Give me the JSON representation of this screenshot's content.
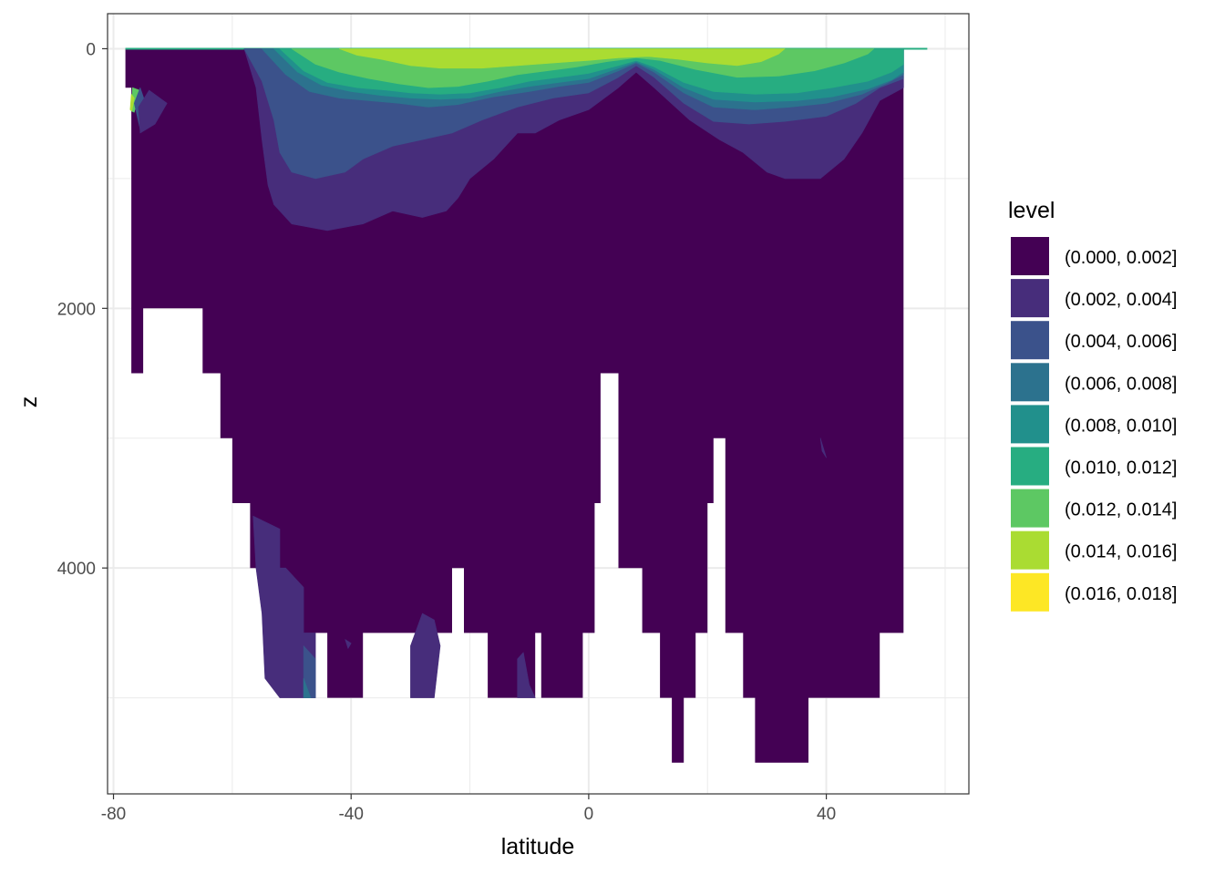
{
  "chart_data": {
    "type": "filled-contour",
    "title": "",
    "xlabel": "latitude",
    "ylabel": "z",
    "xlim": [
      -81,
      64
    ],
    "ylim": [
      5740,
      -270
    ],
    "y_reversed": true,
    "x_ticks": [
      -80,
      -40,
      0,
      40
    ],
    "x_tick_labels": [
      "-80",
      "-40",
      "0",
      "40"
    ],
    "y_ticks": [
      0,
      2000,
      4000
    ],
    "y_tick_labels": [
      "0",
      "2000",
      "4000"
    ],
    "grid": true,
    "legend": {
      "title": "level",
      "position": "right",
      "entries": [
        {
          "label": "(0.000, 0.002]",
          "color": "#440154"
        },
        {
          "label": "(0.002, 0.004]",
          "color": "#472D7B"
        },
        {
          "label": "(0.004, 0.006]",
          "color": "#3B528B"
        },
        {
          "label": "(0.006, 0.008]",
          "color": "#2C728E"
        },
        {
          "label": "(0.008, 0.010]",
          "color": "#21908C"
        },
        {
          "label": "(0.010, 0.012]",
          "color": "#27AD81"
        },
        {
          "label": "(0.012, 0.014]",
          "color": "#5DC863"
        },
        {
          "label": "(0.014, 0.016]",
          "color": "#AADC32"
        },
        {
          "label": "(0.016, 0.018]",
          "color": "#FDE725"
        }
      ]
    },
    "bathymetry_mask": [
      [
        -77,
        300
      ],
      [
        -77,
        2500
      ],
      [
        -75,
        2500
      ],
      [
        -75,
        2000
      ],
      [
        -65,
        2000
      ],
      [
        -65,
        2500
      ],
      [
        -62,
        2500
      ],
      [
        -62,
        3000
      ],
      [
        -60,
        3000
      ],
      [
        -60,
        3500
      ],
      [
        -57,
        3500
      ],
      [
        -57,
        4000
      ],
      [
        -52,
        4000
      ],
      [
        -52,
        4500
      ],
      [
        -48,
        4500
      ],
      [
        -48,
        5000
      ],
      [
        -46,
        5000
      ],
      [
        -46,
        4500
      ],
      [
        -44,
        4500
      ],
      [
        -44,
        5000
      ],
      [
        -38,
        5000
      ],
      [
        -38,
        4500
      ],
      [
        -23,
        4500
      ],
      [
        -23,
        4000
      ],
      [
        -21,
        4000
      ],
      [
        -21,
        4500
      ],
      [
        -17,
        4500
      ],
      [
        -17,
        5000
      ],
      [
        -9,
        5000
      ],
      [
        -9,
        4500
      ],
      [
        -8,
        4500
      ],
      [
        -8,
        5000
      ],
      [
        -1,
        5000
      ],
      [
        -1,
        4500
      ],
      [
        1,
        4500
      ],
      [
        1,
        3500
      ],
      [
        2,
        3500
      ],
      [
        2,
        2500
      ],
      [
        5,
        2500
      ],
      [
        5,
        4000
      ],
      [
        9,
        4000
      ],
      [
        9,
        4500
      ],
      [
        12,
        4500
      ],
      [
        12,
        5000
      ],
      [
        14,
        5000
      ],
      [
        14,
        5500
      ],
      [
        16,
        5500
      ],
      [
        16,
        5000
      ],
      [
        18,
        5000
      ],
      [
        18,
        4500
      ],
      [
        20,
        4500
      ],
      [
        20,
        3500
      ],
      [
        21,
        3500
      ],
      [
        21,
        3000
      ],
      [
        23,
        3000
      ],
      [
        23,
        4500
      ],
      [
        26,
        4500
      ],
      [
        26,
        5000
      ],
      [
        28,
        5000
      ],
      [
        28,
        5500
      ],
      [
        37,
        5500
      ],
      [
        37,
        5000
      ],
      [
        49,
        5000
      ],
      [
        49,
        4500
      ],
      [
        53,
        4500
      ],
      [
        53,
        0
      ],
      [
        -78,
        0
      ],
      [
        -78,
        300
      ]
    ],
    "contour_bands": [
      {
        "level": "(0.002, 0.004]",
        "polygon": [
          [
            -58,
            0
          ],
          [
            -56,
            300
          ],
          [
            -55,
            700
          ],
          [
            -54,
            1050
          ],
          [
            -53,
            1200
          ],
          [
            -50,
            1350
          ],
          [
            -44,
            1400
          ],
          [
            -38,
            1350
          ],
          [
            -33,
            1250
          ],
          [
            -28,
            1300
          ],
          [
            -24,
            1250
          ],
          [
            -22,
            1150
          ],
          [
            -20,
            1000
          ],
          [
            -16,
            850
          ],
          [
            -12,
            650
          ],
          [
            -9,
            650
          ],
          [
            -5,
            550
          ],
          [
            0,
            470
          ],
          [
            5,
            300
          ],
          [
            8,
            180
          ],
          [
            11,
            300
          ],
          [
            17,
            550
          ],
          [
            22,
            700
          ],
          [
            26,
            800
          ],
          [
            30,
            950
          ],
          [
            33,
            1000
          ],
          [
            39,
            1000
          ],
          [
            43,
            850
          ],
          [
            46,
            650
          ],
          [
            49,
            400
          ],
          [
            53,
            300
          ],
          [
            53,
            0
          ]
        ]
      },
      {
        "level": "(0.004, 0.006]",
        "polygon": [
          [
            -58,
            0
          ],
          [
            -55,
            250
          ],
          [
            -53,
            550
          ],
          [
            -52,
            800
          ],
          [
            -50,
            950
          ],
          [
            -46,
            1000
          ],
          [
            -41,
            950
          ],
          [
            -38,
            850
          ],
          [
            -33,
            750
          ],
          [
            -28,
            700
          ],
          [
            -23,
            650
          ],
          [
            -18,
            550
          ],
          [
            -12,
            450
          ],
          [
            -6,
            380
          ],
          [
            0,
            340
          ],
          [
            5,
            220
          ],
          [
            8,
            130
          ],
          [
            11,
            220
          ],
          [
            16,
            420
          ],
          [
            21,
            560
          ],
          [
            27,
            580
          ],
          [
            33,
            560
          ],
          [
            40,
            520
          ],
          [
            45,
            420
          ],
          [
            49,
            300
          ],
          [
            53,
            230
          ],
          [
            53,
            0
          ]
        ]
      },
      {
        "level": "(0.006, 0.008]",
        "polygon": [
          [
            -55,
            0
          ],
          [
            -51,
            200
          ],
          [
            -47,
            330
          ],
          [
            -42,
            380
          ],
          [
            -37,
            400
          ],
          [
            -32,
            420
          ],
          [
            -27,
            450
          ],
          [
            -22,
            430
          ],
          [
            -16,
            370
          ],
          [
            -10,
            330
          ],
          [
            -5,
            290
          ],
          [
            0,
            260
          ],
          [
            5,
            170
          ],
          [
            8,
            110
          ],
          [
            11,
            180
          ],
          [
            16,
            340
          ],
          [
            21,
            450
          ],
          [
            28,
            470
          ],
          [
            34,
            450
          ],
          [
            40,
            420
          ],
          [
            46,
            350
          ],
          [
            50,
            270
          ],
          [
            53,
            200
          ],
          [
            53,
            0
          ]
        ]
      },
      {
        "level": "(0.008, 0.010]",
        "polygon": [
          [
            -53,
            0
          ],
          [
            -49,
            180
          ],
          [
            -45,
            280
          ],
          [
            -40,
            330
          ],
          [
            -35,
            360
          ],
          [
            -30,
            380
          ],
          [
            -25,
            390
          ],
          [
            -20,
            380
          ],
          [
            -15,
            330
          ],
          [
            -10,
            290
          ],
          [
            -5,
            260
          ],
          [
            0,
            230
          ],
          [
            5,
            150
          ],
          [
            8,
            100
          ],
          [
            11,
            160
          ],
          [
            16,
            300
          ],
          [
            21,
            390
          ],
          [
            28,
            410
          ],
          [
            35,
            400
          ],
          [
            41,
            370
          ],
          [
            47,
            310
          ],
          [
            51,
            240
          ],
          [
            53,
            180
          ],
          [
            53,
            0
          ]
        ]
      },
      {
        "level": "(0.010, 0.012]",
        "polygon": [
          [
            -52,
            0
          ],
          [
            -48,
            170
          ],
          [
            -44,
            260
          ],
          [
            -39,
            300
          ],
          [
            -34,
            320
          ],
          [
            -30,
            340
          ],
          [
            -25,
            350
          ],
          [
            -20,
            340
          ],
          [
            -15,
            300
          ],
          [
            -10,
            250
          ],
          [
            -5,
            220
          ],
          [
            0,
            190
          ],
          [
            5,
            130
          ],
          [
            8,
            90
          ],
          [
            11,
            140
          ],
          [
            16,
            260
          ],
          [
            21,
            330
          ],
          [
            28,
            350
          ],
          [
            35,
            340
          ],
          [
            41,
            300
          ],
          [
            47,
            250
          ],
          [
            51,
            180
          ],
          [
            53,
            120
          ],
          [
            53,
            0
          ]
        ]
      },
      {
        "level": "(0.012, 0.014]",
        "polygon": [
          [
            -50,
            0
          ],
          [
            -46,
            120
          ],
          [
            -42,
            180
          ],
          [
            -37,
            230
          ],
          [
            -32,
            270
          ],
          [
            -27,
            300
          ],
          [
            -22,
            290
          ],
          [
            -17,
            250
          ],
          [
            -12,
            200
          ],
          [
            -7,
            170
          ],
          [
            -2,
            140
          ],
          [
            3,
            100
          ],
          [
            8,
            70
          ],
          [
            12,
            90
          ],
          [
            18,
            160
          ],
          [
            25,
            220
          ],
          [
            32,
            210
          ],
          [
            38,
            170
          ],
          [
            43,
            110
          ],
          [
            47,
            40
          ],
          [
            48,
            0
          ]
        ]
      },
      {
        "level": "(0.014, 0.016]",
        "polygon": [
          [
            -42,
            0
          ],
          [
            -39,
            50
          ],
          [
            -35,
            80
          ],
          [
            -30,
            130
          ],
          [
            -25,
            150
          ],
          [
            -18,
            150
          ],
          [
            -12,
            130
          ],
          [
            -6,
            110
          ],
          [
            0,
            90
          ],
          [
            5,
            70
          ],
          [
            10,
            60
          ],
          [
            15,
            80
          ],
          [
            20,
            110
          ],
          [
            25,
            130
          ],
          [
            29,
            100
          ],
          [
            32,
            40
          ],
          [
            33,
            0
          ]
        ]
      },
      {
        "level": "(0.012, 0.014]",
        "polygon": [
          [
            -76.8,
            300
          ],
          [
            -75.6,
            320
          ],
          [
            -76.5,
            490
          ],
          [
            -77,
            480
          ]
        ]
      },
      {
        "level": "(0.014, 0.016]",
        "polygon": [
          [
            -77,
            350
          ],
          [
            -76.5,
            380
          ],
          [
            -76.9,
            480
          ],
          [
            -77.2,
            470
          ]
        ]
      },
      {
        "level": "(0.004, 0.006]",
        "polygon": [
          [
            -75.5,
            300
          ],
          [
            -74,
            500
          ],
          [
            -75.5,
            620
          ],
          [
            -76.5,
            420
          ]
        ]
      },
      {
        "level": "(0.002, 0.004]",
        "polygon": [
          [
            -74,
            320
          ],
          [
            -71,
            420
          ],
          [
            -73,
            580
          ],
          [
            -75.5,
            650
          ],
          [
            -75.8,
            450
          ]
        ]
      },
      {
        "level": "(0.002, 0.004]",
        "polygon": [
          [
            -56,
            4000
          ],
          [
            -55,
            4350
          ],
          [
            -54.5,
            4850
          ],
          [
            -52,
            5000
          ],
          [
            -46,
            5000
          ],
          [
            -46,
            4500
          ],
          [
            -48,
            4500
          ],
          [
            -48,
            4150
          ],
          [
            -51,
            4000
          ],
          [
            -52,
            4000
          ],
          [
            -52,
            3700
          ],
          [
            -56.5,
            3600
          ]
        ]
      },
      {
        "level": "(0.004, 0.006]",
        "polygon": [
          [
            -48,
            4600
          ],
          [
            -48,
            5000
          ],
          [
            -46,
            5000
          ],
          [
            -46,
            4700
          ]
        ]
      },
      {
        "level": "(0.006, 0.008]",
        "polygon": [
          [
            -48,
            4850
          ],
          [
            -48,
            5000
          ],
          [
            -46.8,
            5000
          ]
        ]
      },
      {
        "level": "(0.002, 0.004]",
        "polygon": [
          [
            -30,
            5000
          ],
          [
            -30,
            4600
          ],
          [
            -28,
            4350
          ],
          [
            -26,
            4400
          ],
          [
            -25,
            4600
          ],
          [
            -26,
            5000
          ]
        ]
      },
      {
        "level": "(0.002, 0.004]",
        "polygon": [
          [
            -12,
            5000
          ],
          [
            -12,
            4700
          ],
          [
            -11,
            4650
          ],
          [
            -10,
            4900
          ],
          [
            -9,
            5000
          ]
        ]
      },
      {
        "level": "(0.002, 0.004]",
        "polygon": [
          [
            -41,
            4550
          ],
          [
            -40,
            4580
          ],
          [
            -40.5,
            4620
          ]
        ]
      },
      {
        "level": "(0.002, 0.004]",
        "polygon": [
          [
            39,
            3000
          ],
          [
            40,
            3150
          ],
          [
            39.3,
            3100
          ]
        ]
      }
    ]
  }
}
